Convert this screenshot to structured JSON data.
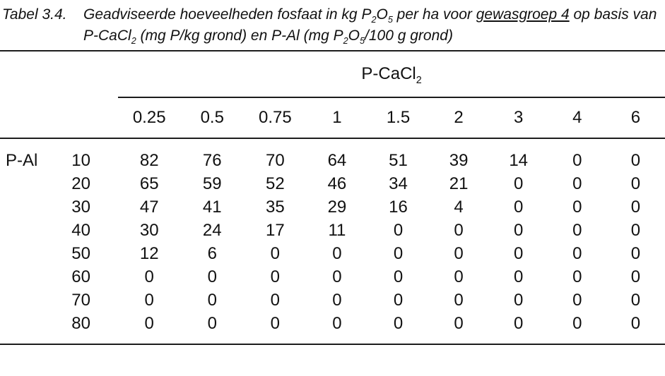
{
  "page": {
    "background": "#ffffff",
    "text_color": "#1a1a1a",
    "rule_color": "#1c1c1c"
  },
  "caption": {
    "label": "Tabel 3.4.",
    "line1": [
      {
        "text": "Geadviseerde hoeveelheden fosfaat in kg P"
      },
      {
        "text": "2",
        "style": "sub"
      },
      {
        "text": "O"
      },
      {
        "text": "5",
        "style": "sub"
      },
      {
        "text": " per ha voor "
      },
      {
        "text": "gewasgroep 4",
        "style": "underline"
      },
      {
        "text": " op basis van"
      }
    ],
    "line2": [
      {
        "text": "P-CaCl"
      },
      {
        "text": "2",
        "style": "sub"
      },
      {
        "text": " (mg P/kg grond) en P-Al (mg P"
      },
      {
        "text": "2",
        "style": "sub"
      },
      {
        "text": "O"
      },
      {
        "text": "5",
        "style": "sub"
      },
      {
        "text": "/100 g grond)"
      }
    ]
  },
  "table": {
    "group_header": [
      {
        "text": "P-CaCl"
      },
      {
        "text": "2",
        "style": "sub"
      }
    ],
    "col_headers": [
      "0.25",
      "0.5",
      "0.75",
      "1",
      "1.5",
      "2",
      "3",
      "4",
      "6"
    ],
    "row_axis_label": "P-Al",
    "row_headers": [
      "10",
      "20",
      "30",
      "40",
      "50",
      "60",
      "70",
      "80"
    ],
    "rows": [
      [
        82,
        76,
        70,
        64,
        51,
        39,
        14,
        0,
        0
      ],
      [
        65,
        59,
        52,
        46,
        34,
        21,
        0,
        0,
        0
      ],
      [
        47,
        41,
        35,
        29,
        16,
        4,
        0,
        0,
        0
      ],
      [
        30,
        24,
        17,
        11,
        0,
        0,
        0,
        0,
        0
      ],
      [
        12,
        6,
        0,
        0,
        0,
        0,
        0,
        0,
        0
      ],
      [
        0,
        0,
        0,
        0,
        0,
        0,
        0,
        0,
        0
      ],
      [
        0,
        0,
        0,
        0,
        0,
        0,
        0,
        0,
        0
      ],
      [
        0,
        0,
        0,
        0,
        0,
        0,
        0,
        0,
        0
      ]
    ]
  }
}
